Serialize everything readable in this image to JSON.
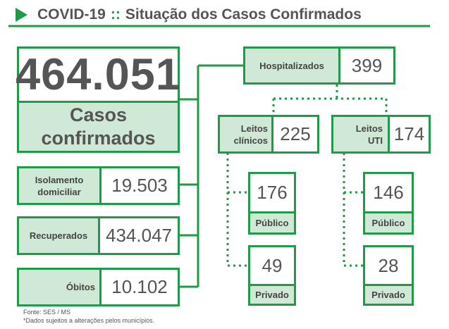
{
  "header": {
    "title_main": "COVID-19",
    "title_sep": "::",
    "title_rest": "Situação dos Casos Confirmados"
  },
  "cases": {
    "value": "464.051",
    "label": "Casos confirmados"
  },
  "isolation": {
    "label": "Isolamento domiciliar",
    "value": "19.503"
  },
  "recovered": {
    "label": "Recuperados",
    "value": "434.047"
  },
  "deaths": {
    "label": "Óbitos",
    "value": "10.102"
  },
  "hospitalized": {
    "label": "Hospitalizados",
    "value": "399"
  },
  "clinical": {
    "label": "Leitos clínicos",
    "value": "225",
    "public": {
      "value": "176",
      "label": "Público"
    },
    "private": {
      "value": "49",
      "label": "Privado"
    }
  },
  "icu": {
    "label": "Leitos UTI",
    "value": "174",
    "public": {
      "value": "146",
      "label": "Público"
    },
    "private": {
      "value": "28",
      "label": "Privado"
    }
  },
  "footer": {
    "source": "Fonte: SES / MS",
    "note": "*Dados sujeitos a alterações pelos municípios."
  },
  "colors": {
    "green": "#1f9a46",
    "light_green": "#cfe9d6",
    "text": "#555555"
  }
}
